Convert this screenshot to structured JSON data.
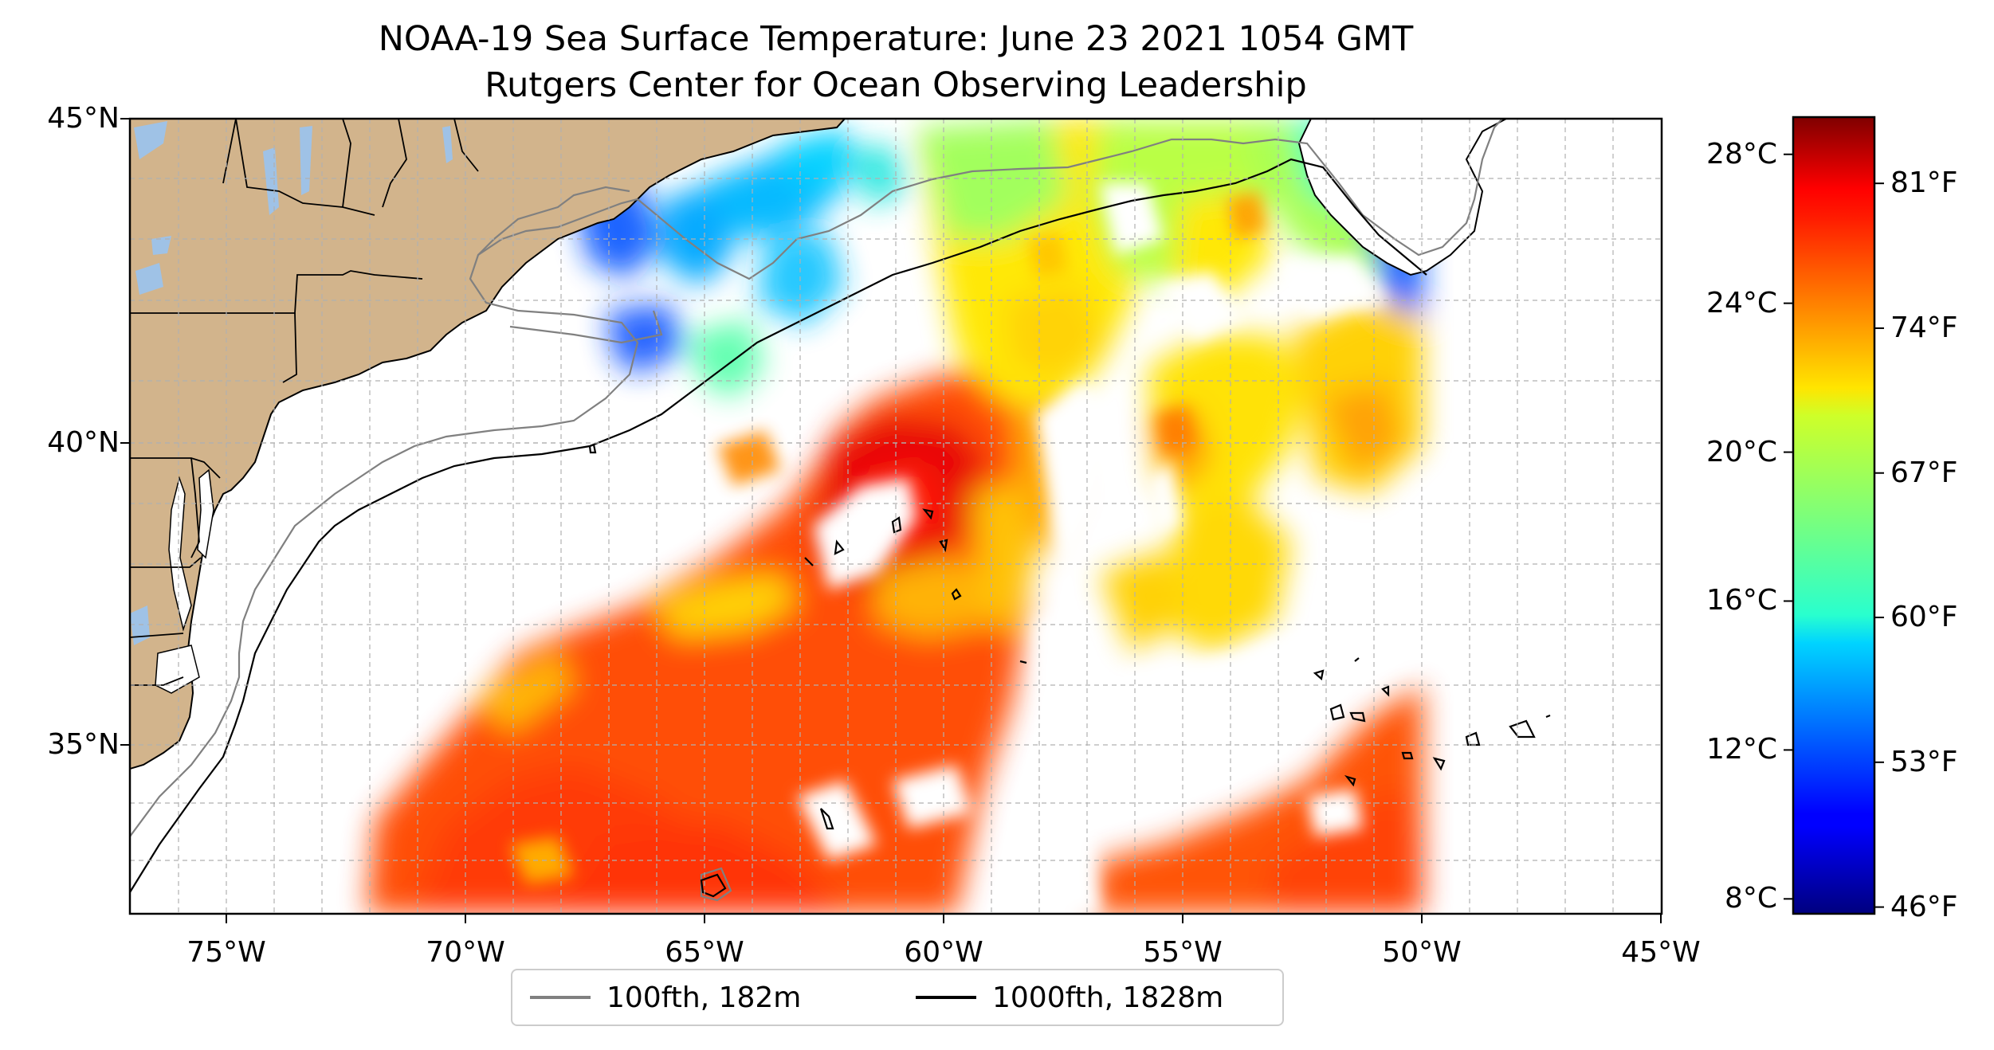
{
  "title": {
    "line1": "NOAA-19 Sea Surface Temperature: June 23 2021 1054 GMT",
    "line2": "Rutgers Center for Ocean Observing Leadership"
  },
  "map": {
    "lon_range": [
      -77,
      -45
    ],
    "lat_range": [
      32.2,
      45
    ],
    "lat_ticks": [
      {
        "value": 45,
        "label": "45°N"
      },
      {
        "value": 40,
        "label": "40°N"
      },
      {
        "value": 35,
        "label": "35°N"
      }
    ],
    "lon_ticks": [
      {
        "value": -75,
        "label": "75°W"
      },
      {
        "value": -70,
        "label": "70°W"
      },
      {
        "value": -65,
        "label": "65°W"
      },
      {
        "value": -60,
        "label": "60°W"
      },
      {
        "value": -55,
        "label": "55°W"
      },
      {
        "value": -50,
        "label": "50°W"
      },
      {
        "value": -45,
        "label": "45°W"
      }
    ],
    "grid": true,
    "land_color": "#d2b48c",
    "lake_color": "#9fc2e6",
    "coast_color": "#000000"
  },
  "colorbar": {
    "colormap": "jet",
    "range_c": [
      7.6,
      29
    ],
    "celsius_ticks": [
      {
        "value": 28,
        "label": "28°C"
      },
      {
        "value": 24,
        "label": "24°C"
      },
      {
        "value": 20,
        "label": "20°C"
      },
      {
        "value": 16,
        "label": "16°C"
      },
      {
        "value": 12,
        "label": "12°C"
      },
      {
        "value": 8,
        "label": "8°C"
      }
    ],
    "fahrenheit_ticks": [
      {
        "value": 27.22,
        "label": "81°F"
      },
      {
        "value": 23.33,
        "label": "74°F"
      },
      {
        "value": 19.44,
        "label": "67°F"
      },
      {
        "value": 15.56,
        "label": "60°F"
      },
      {
        "value": 11.67,
        "label": "53°F"
      },
      {
        "value": 7.78,
        "label": "46°F"
      }
    ]
  },
  "legend": {
    "placement": "bottom-center",
    "items": [
      {
        "label": "100fth, 182m",
        "color": "#808080"
      },
      {
        "label": "1000fth, 1828m",
        "color": "#000000"
      }
    ]
  }
}
